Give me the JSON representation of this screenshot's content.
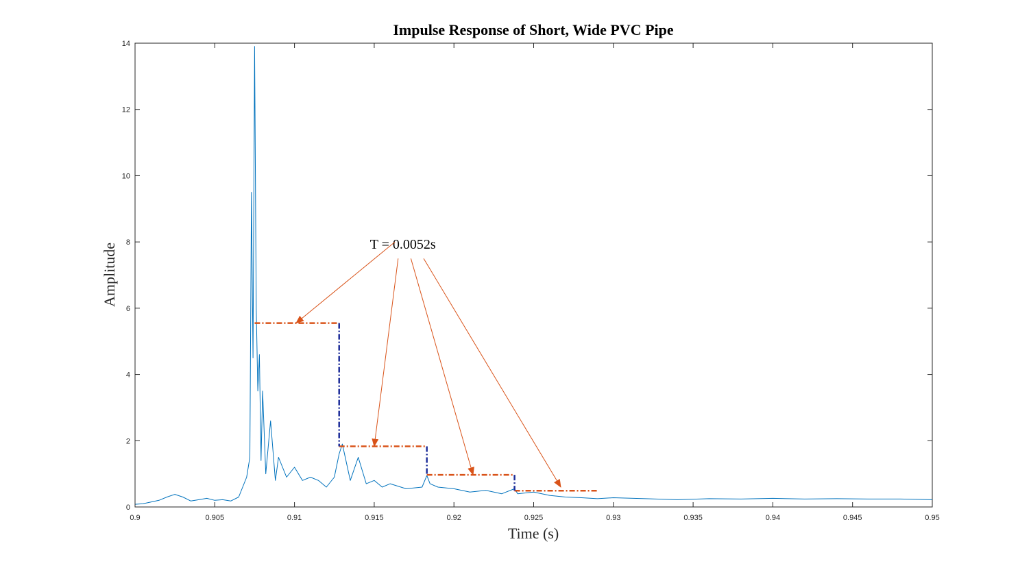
{
  "chart_data": {
    "type": "line",
    "title": "Impulse Response of Short, Wide PVC Pipe",
    "xlabel": "Time (s)",
    "ylabel": "Amplitude",
    "xlim": [
      0.9,
      0.95
    ],
    "ylim": [
      0,
      14
    ],
    "x_ticks": [
      0.9,
      0.905,
      0.91,
      0.915,
      0.92,
      0.925,
      0.93,
      0.935,
      0.94,
      0.945,
      0.95
    ],
    "x_tick_labels": [
      "0.9",
      "0.905",
      "0.91",
      "0.915",
      "0.92",
      "0.925",
      "0.93",
      "0.935",
      "0.94",
      "0.945",
      "0.95"
    ],
    "y_ticks": [
      0,
      2,
      4,
      6,
      8,
      10,
      12,
      14
    ],
    "y_tick_labels": [
      "0",
      "2",
      "4",
      "6",
      "8",
      "10",
      "12",
      "14"
    ],
    "grid": false,
    "colors": {
      "signal": "#0072BD",
      "level_line": "#D95319",
      "step_line": "#1F2F9A",
      "axis": "#262626"
    },
    "series": [
      {
        "points": [
          [
            0.9,
            0.08
          ],
          [
            0.9005,
            0.1
          ],
          [
            0.901,
            0.15
          ],
          [
            0.9015,
            0.2
          ],
          [
            0.902,
            0.3
          ],
          [
            0.9025,
            0.38
          ],
          [
            0.903,
            0.3
          ],
          [
            0.9035,
            0.18
          ],
          [
            0.904,
            0.22
          ],
          [
            0.9045,
            0.26
          ],
          [
            0.905,
            0.2
          ],
          [
            0.9055,
            0.22
          ],
          [
            0.906,
            0.18
          ],
          [
            0.9065,
            0.3
          ],
          [
            0.907,
            0.9
          ],
          [
            0.9072,
            1.5
          ],
          [
            0.9073,
            9.5
          ],
          [
            0.9074,
            4.5
          ],
          [
            0.9075,
            13.9
          ],
          [
            0.9076,
            6.0
          ],
          [
            0.9077,
            3.5
          ],
          [
            0.9078,
            4.6
          ],
          [
            0.9079,
            1.4
          ],
          [
            0.908,
            3.5
          ],
          [
            0.9082,
            1.0
          ],
          [
            0.9085,
            2.6
          ],
          [
            0.9088,
            0.8
          ],
          [
            0.909,
            1.5
          ],
          [
            0.9095,
            0.9
          ],
          [
            0.91,
            1.2
          ],
          [
            0.9105,
            0.8
          ],
          [
            0.911,
            0.9
          ],
          [
            0.9115,
            0.8
          ],
          [
            0.912,
            0.6
          ],
          [
            0.9125,
            0.9
          ],
          [
            0.9128,
            1.6
          ],
          [
            0.913,
            1.9
          ],
          [
            0.9135,
            0.8
          ],
          [
            0.914,
            1.5
          ],
          [
            0.9145,
            0.7
          ],
          [
            0.915,
            0.8
          ],
          [
            0.9155,
            0.6
          ],
          [
            0.916,
            0.7
          ],
          [
            0.917,
            0.55
          ],
          [
            0.918,
            0.6
          ],
          [
            0.9183,
            0.95
          ],
          [
            0.9185,
            0.7
          ],
          [
            0.919,
            0.6
          ],
          [
            0.92,
            0.55
          ],
          [
            0.921,
            0.45
          ],
          [
            0.922,
            0.5
          ],
          [
            0.923,
            0.4
          ],
          [
            0.9238,
            0.55
          ],
          [
            0.924,
            0.4
          ],
          [
            0.925,
            0.45
          ],
          [
            0.926,
            0.35
          ],
          [
            0.927,
            0.3
          ],
          [
            0.928,
            0.28
          ],
          [
            0.929,
            0.25
          ],
          [
            0.93,
            0.28
          ],
          [
            0.932,
            0.25
          ],
          [
            0.934,
            0.22
          ],
          [
            0.936,
            0.25
          ],
          [
            0.938,
            0.24
          ],
          [
            0.94,
            0.26
          ],
          [
            0.942,
            0.24
          ],
          [
            0.944,
            0.25
          ],
          [
            0.946,
            0.24
          ],
          [
            0.948,
            0.24
          ],
          [
            0.95,
            0.22
          ]
        ]
      }
    ],
    "level_lines": [
      {
        "x": [
          0.9075,
          0.9128
        ],
        "y": 5.55
      },
      {
        "x": [
          0.9128,
          0.9183
        ],
        "y": 1.83
      },
      {
        "x": [
          0.9183,
          0.9238
        ],
        "y": 0.97
      },
      {
        "x": [
          0.9238,
          0.929
        ],
        "y": 0.49
      }
    ],
    "step_lines": [
      {
        "x": 0.9128,
        "y": [
          5.55,
          1.83
        ]
      },
      {
        "x": 0.9183,
        "y": [
          1.83,
          0.97
        ]
      },
      {
        "x": 0.9238,
        "y": [
          0.97,
          0.49
        ]
      }
    ],
    "annotations": [
      {
        "text": "T = 0.0052s",
        "text_at": [
          0.9168,
          7.8
        ],
        "arrows": [
          {
            "from": [
              0.9163,
              8.0
            ],
            "to": [
              0.9101,
              5.55
            ]
          },
          {
            "from": [
              0.9165,
              7.5
            ],
            "to": [
              0.915,
              1.83
            ]
          },
          {
            "from": [
              0.9173,
              7.5
            ],
            "to": [
              0.9212,
              0.97
            ]
          },
          {
            "from": [
              0.9181,
              7.5
            ],
            "to": [
              0.9267,
              0.6
            ]
          }
        ]
      }
    ]
  }
}
